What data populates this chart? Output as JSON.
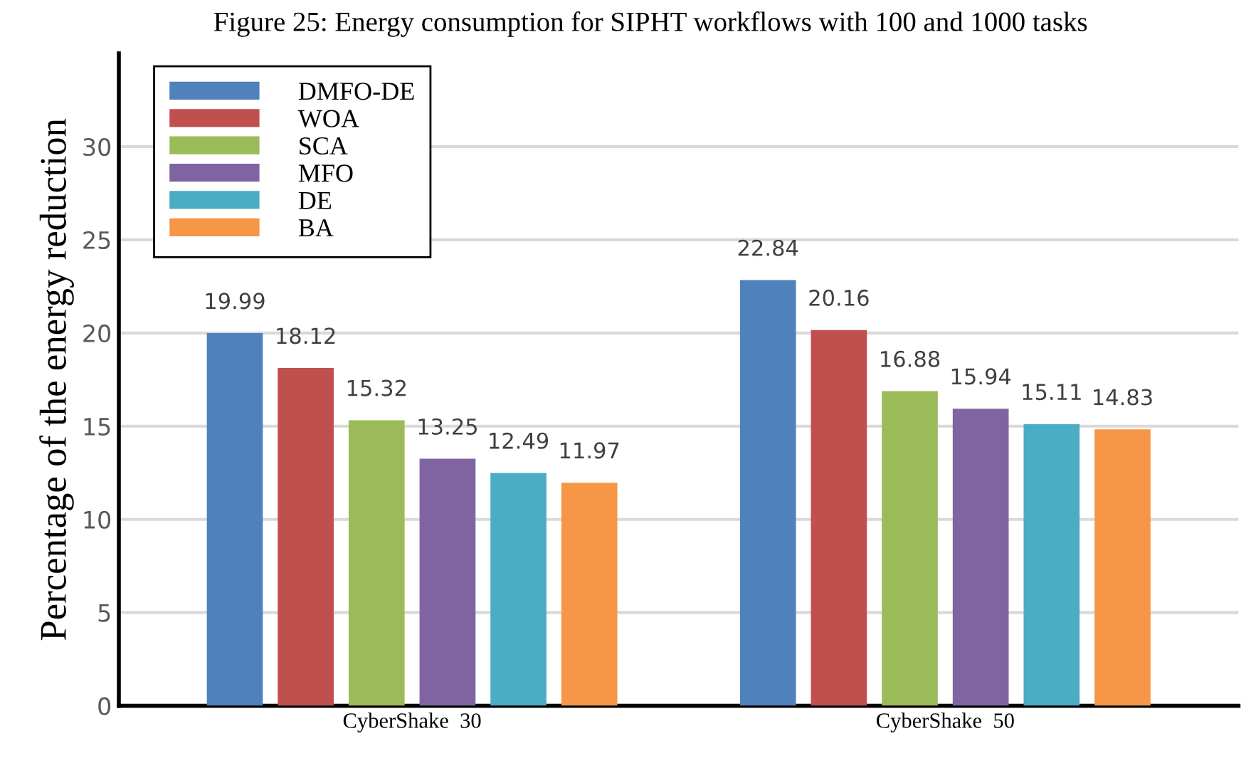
{
  "chart_data": {
    "type": "bar",
    "title": "Figure 25: Energy consumption for SIPHT workflows with 100 and 1000 tasks",
    "ylabel": "Percentage of the energy reduction",
    "categories": [
      "CyberShake  30",
      "CyberShake  50"
    ],
    "series": [
      {
        "name": "DMFO-DE",
        "color": "#4f81bd",
        "values": [
          19.99,
          22.84
        ]
      },
      {
        "name": "WOA",
        "color": "#c0504d",
        "values": [
          18.12,
          20.16
        ]
      },
      {
        "name": "SCA",
        "color": "#9bbb59",
        "values": [
          15.32,
          16.88
        ]
      },
      {
        "name": "MFO",
        "color": "#8064a2",
        "values": [
          13.25,
          15.94
        ]
      },
      {
        "name": "DE",
        "color": "#4bacc6",
        "values": [
          12.49,
          15.11
        ]
      },
      {
        "name": "BA",
        "color": "#f79646",
        "values": [
          11.97,
          14.83
        ]
      }
    ],
    "ylim": [
      0,
      35
    ],
    "yticks": [
      0,
      5,
      10,
      15,
      20,
      25,
      30
    ],
    "grid": "y",
    "legend": "top left",
    "data_labels": true
  }
}
